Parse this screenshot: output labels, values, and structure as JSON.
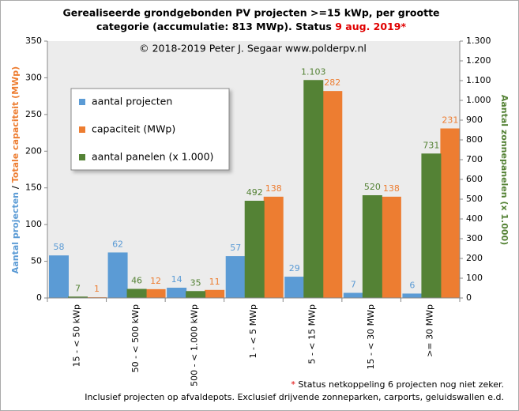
{
  "chart_data": {
    "type": "bar",
    "title_line1": "Gerealiseerde grondgebonden PV projecten >=15 kWp, per grootte",
    "title_line2": "categorie (accumulatie: 813 MWp). Status ",
    "title_highlight": "9 aug. 2019*",
    "subtitle": "© 2018-2019  Peter J. Segaar  www.polderpv.nl",
    "ylabel_part1": "Aantal projecten",
    "ylabel_separator": " / ",
    "ylabel_part2": "Totale capaciteit (MWp)",
    "y2label": "Aantal zonnepanelen (x 1.000)",
    "footnote_marker": "*",
    "footnote1": " Status netkoppeling 6 projecten nog niet zeker.",
    "footnote2": "Inclusief projecten op afvaldepots. Exclusief drijvende zonneparken, carports, geluidswallen e.d.",
    "categories": [
      "15 - <  50 kWp",
      "50 - <  500 kWp",
      "500 - < 1.000 kWp",
      "1 - < 5 MWp",
      "5 - < 15 MWp",
      "15 - < 30 MWp",
      ">= 30 MWp"
    ],
    "series": [
      {
        "name": "aantal projecten",
        "color": "#5b9bd5",
        "values": [
          58,
          62,
          14,
          57,
          29,
          7,
          6
        ]
      },
      {
        "name": "capaciteit (MWp)",
        "color": "#ed7d31",
        "values": [
          1,
          12,
          11,
          138,
          282,
          138,
          231
        ]
      },
      {
        "name": "aantal panelen (x 1.000)",
        "color": "#548235",
        "axis": "y2",
        "values": [
          7,
          46,
          35,
          492,
          1103,
          520,
          731
        ],
        "value_labels": [
          "7",
          "46",
          "35",
          "492",
          "1.103",
          "520",
          "731"
        ]
      }
    ],
    "ylim": [
      0,
      350
    ],
    "yticks": [
      0,
      50,
      100,
      150,
      200,
      250,
      300,
      350
    ],
    "y2lim": [
      0,
      1300
    ],
    "y2ticks": [
      0,
      100,
      200,
      300,
      400,
      500,
      600,
      700,
      800,
      900,
      {
        "value": 1000,
        "label": "1.000"
      },
      {
        "value": 1100,
        "label": "1.100"
      },
      {
        "value": 1200,
        "label": "1.200"
      },
      {
        "value": 1300,
        "label": "1.300"
      }
    ],
    "legend_position": "upper left"
  }
}
